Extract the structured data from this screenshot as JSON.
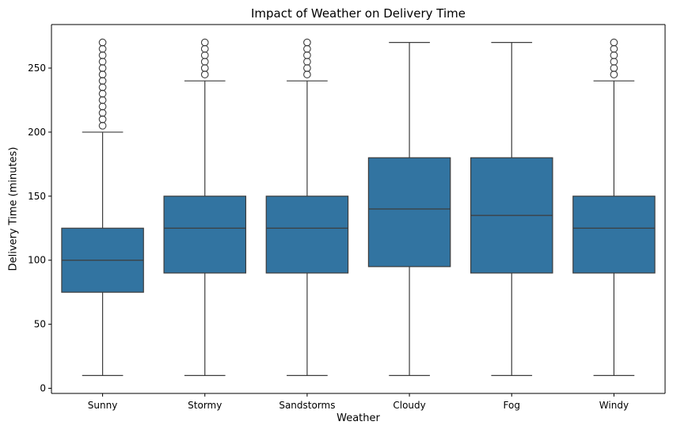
{
  "chart_data": {
    "type": "box",
    "title": "Impact of Weather on Delivery Time",
    "xlabel": "Weather",
    "ylabel": "Delivery Time (minutes)",
    "ylim": [
      -4,
      284
    ],
    "yticks": [
      0,
      50,
      100,
      150,
      200,
      250
    ],
    "grid": false,
    "box_color": "#3274a1",
    "line_color": "#3d3d3d",
    "categories": [
      "Sunny",
      "Stormy",
      "Sandstorms",
      "Cloudy",
      "Fog",
      "Windy"
    ],
    "boxes": [
      {
        "category": "Sunny",
        "whisker_low": 10,
        "q1": 75,
        "median": 100,
        "q3": 125,
        "whisker_high": 200,
        "outliers": [
          205,
          210,
          215,
          220,
          225,
          230,
          235,
          240,
          245,
          250,
          255,
          260,
          265,
          270
        ]
      },
      {
        "category": "Stormy",
        "whisker_low": 10,
        "q1": 90,
        "median": 125,
        "q3": 150,
        "whisker_high": 240,
        "outliers": [
          245,
          250,
          255,
          260,
          265,
          270
        ]
      },
      {
        "category": "Sandstorms",
        "whisker_low": 10,
        "q1": 90,
        "median": 125,
        "q3": 150,
        "whisker_high": 240,
        "outliers": [
          245,
          250,
          255,
          260,
          265,
          270
        ]
      },
      {
        "category": "Cloudy",
        "whisker_low": 10,
        "q1": 95,
        "median": 140,
        "q3": 180,
        "whisker_high": 270,
        "outliers": []
      },
      {
        "category": "Fog",
        "whisker_low": 10,
        "q1": 90,
        "median": 135,
        "q3": 180,
        "whisker_high": 270,
        "outliers": []
      },
      {
        "category": "Windy",
        "whisker_low": 10,
        "q1": 90,
        "median": 125,
        "q3": 150,
        "whisker_high": 240,
        "outliers": [
          245,
          250,
          255,
          260,
          265,
          270
        ]
      }
    ]
  }
}
